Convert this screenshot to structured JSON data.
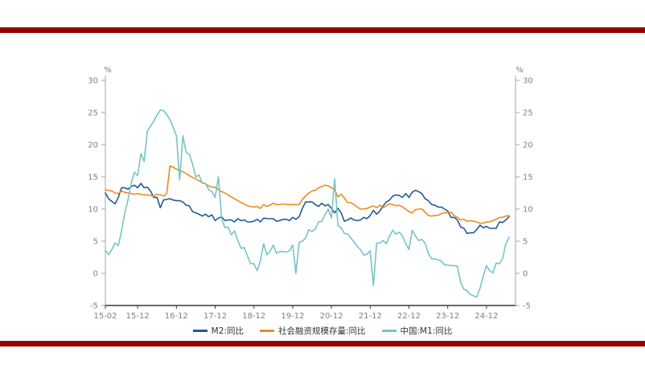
{
  "page": {
    "background": "#ffffff",
    "accent_bar_color": "#990000"
  },
  "colors": {
    "axis_line": "#A6A6A6",
    "x_axis_line": "#3A3A3A",
    "axis_text": "#808080",
    "legend_text": "#333333"
  },
  "chart_data": {
    "type": "line",
    "title": "",
    "y_axis": {
      "unit_label": "%",
      "min": -5,
      "max": 30,
      "step": 5,
      "ticks": [
        -5,
        0,
        5,
        10,
        15,
        20,
        25,
        30
      ],
      "shown_on_both_sides": true
    },
    "x_axis": {
      "start": "2015-02",
      "frequency": "monthly",
      "tick_labels": [
        "15-02",
        "15-12",
        "16-12",
        "17-12",
        "18-12",
        "19-12",
        "20-12",
        "21-12",
        "22-12",
        "23-12",
        "24-12"
      ],
      "tick_indices": [
        0,
        10,
        22,
        34,
        46,
        58,
        70,
        82,
        94,
        106,
        118
      ]
    },
    "legend": {
      "position": "bottom"
    },
    "series": [
      {
        "name": "M2:同比",
        "id": "m2-yoy",
        "color": "#1F5C99",
        "values": [
          12.5,
          11.6,
          11.2,
          10.8,
          11.8,
          13.3,
          13.3,
          13.1,
          13.5,
          13.7,
          13.3,
          14.0,
          13.3,
          13.4,
          12.8,
          11.8,
          11.8,
          10.2,
          11.4,
          11.5,
          11.6,
          11.4,
          11.3,
          11.3,
          11.1,
          10.6,
          10.5,
          9.6,
          9.4,
          9.2,
          8.9,
          9.2,
          8.8,
          9.1,
          8.2,
          8.6,
          8.8,
          8.2,
          8.3,
          8.3,
          8.0,
          8.5,
          8.2,
          8.3,
          8.0,
          8.0,
          8.1,
          8.4,
          8.0,
          8.6,
          8.5,
          8.5,
          8.5,
          8.1,
          8.2,
          8.4,
          8.4,
          8.2,
          8.7,
          8.4,
          8.8,
          10.1,
          11.1,
          11.1,
          11.1,
          10.7,
          10.4,
          10.9,
          10.5,
          10.7,
          10.1,
          9.4,
          10.1,
          9.4,
          8.1,
          8.3,
          8.6,
          8.3,
          8.2,
          8.3,
          8.7,
          8.5,
          9.0,
          9.8,
          9.2,
          9.7,
          10.5,
          11.1,
          11.4,
          12.0,
          12.2,
          12.1,
          11.8,
          12.4,
          11.8,
          12.6,
          12.9,
          12.7,
          12.4,
          11.6,
          11.3,
          10.7,
          10.6,
          10.3,
          10.3,
          10.0,
          9.7,
          8.7,
          8.7,
          8.3,
          7.2,
          7.0,
          6.2,
          6.3,
          6.3,
          6.8,
          7.5,
          7.1,
          7.3,
          7.0,
          7.0,
          7.0,
          8.0,
          7.9,
          8.3,
          8.8
        ]
      },
      {
        "name": "社会融资规模存量:同比",
        "id": "tsf-stock-yoy",
        "color": "#EF8B1F",
        "values": [
          13.0,
          12.9,
          12.8,
          12.5,
          12.4,
          12.8,
          12.6,
          12.5,
          12.4,
          12.3,
          12.4,
          12.3,
          12.2,
          12.2,
          12.1,
          12.0,
          12.3,
          12.2,
          12.0,
          12.4,
          16.7,
          16.5,
          16.2,
          16.0,
          15.8,
          15.5,
          15.2,
          14.9,
          14.7,
          14.4,
          14.1,
          13.9,
          13.6,
          13.4,
          13.4,
          13.0,
          12.7,
          12.5,
          12.2,
          11.9,
          11.6,
          11.3,
          11.0,
          10.8,
          10.5,
          10.4,
          10.3,
          10.4,
          10.1,
          10.7,
          10.4,
          10.6,
          10.9,
          10.7,
          10.7,
          10.8,
          10.7,
          10.7,
          10.7,
          10.7,
          10.7,
          11.5,
          12.0,
          12.5,
          12.8,
          12.9,
          13.3,
          13.5,
          13.7,
          13.6,
          13.3,
          13.0,
          11.9,
          12.3,
          11.7,
          11.0,
          11.0,
          10.7,
          10.3,
          10.0,
          10.0,
          10.1,
          10.3,
          10.5,
          10.2,
          10.6,
          10.2,
          10.5,
          10.8,
          10.7,
          10.5,
          10.6,
          10.3,
          10.0,
          9.6,
          9.4,
          9.9,
          10.0,
          10.0,
          9.5,
          9.0,
          8.9,
          9.0,
          9.0,
          9.3,
          9.4,
          9.5,
          9.5,
          9.0,
          8.7,
          8.3,
          8.4,
          8.1,
          8.2,
          8.1,
          8.0,
          7.8,
          7.8,
          8.0,
          8.0,
          8.2,
          8.4,
          8.7,
          8.7,
          8.9,
          9.0
        ]
      },
      {
        "name": "中国:M1:同比",
        "id": "china-m1-yoy",
        "color": "#76C4C6",
        "values": [
          3.6,
          2.9,
          3.7,
          4.7,
          4.3,
          6.6,
          9.3,
          11.4,
          14.0,
          15.7,
          15.2,
          18.6,
          17.4,
          22.1,
          22.9,
          23.7,
          24.6,
          25.4,
          25.3,
          24.7,
          23.9,
          22.7,
          21.4,
          14.5,
          21.4,
          18.8,
          18.5,
          17.0,
          15.0,
          15.3,
          14.0,
          14.0,
          13.0,
          12.7,
          11.8,
          15.0,
          8.5,
          7.1,
          7.2,
          6.0,
          6.6,
          5.1,
          3.9,
          4.0,
          2.7,
          1.5,
          1.5,
          0.4,
          2.0,
          4.6,
          2.9,
          3.4,
          4.4,
          3.1,
          3.4,
          3.4,
          3.3,
          3.5,
          4.4,
          0.0,
          4.8,
          5.0,
          5.5,
          6.8,
          6.5,
          6.9,
          8.0,
          8.1,
          9.1,
          10.0,
          8.6,
          14.7,
          7.4,
          7.1,
          6.2,
          6.1,
          5.5,
          4.9,
          4.2,
          3.7,
          2.8,
          3.0,
          3.5,
          -1.9,
          4.7,
          4.7,
          5.1,
          4.6,
          5.8,
          6.7,
          6.1,
          6.4,
          5.8,
          4.6,
          3.7,
          6.7,
          5.8,
          5.1,
          5.3,
          4.7,
          3.1,
          2.3,
          2.2,
          2.1,
          1.9,
          1.3,
          1.3,
          1.2,
          1.2,
          1.1,
          -1.4,
          -2.5,
          -2.7,
          -3.3,
          -3.5,
          -3.7,
          -2.3,
          -0.4,
          1.2,
          0.4,
          0.1,
          1.6,
          1.5,
          2.3,
          4.6,
          5.6
        ]
      }
    ]
  }
}
